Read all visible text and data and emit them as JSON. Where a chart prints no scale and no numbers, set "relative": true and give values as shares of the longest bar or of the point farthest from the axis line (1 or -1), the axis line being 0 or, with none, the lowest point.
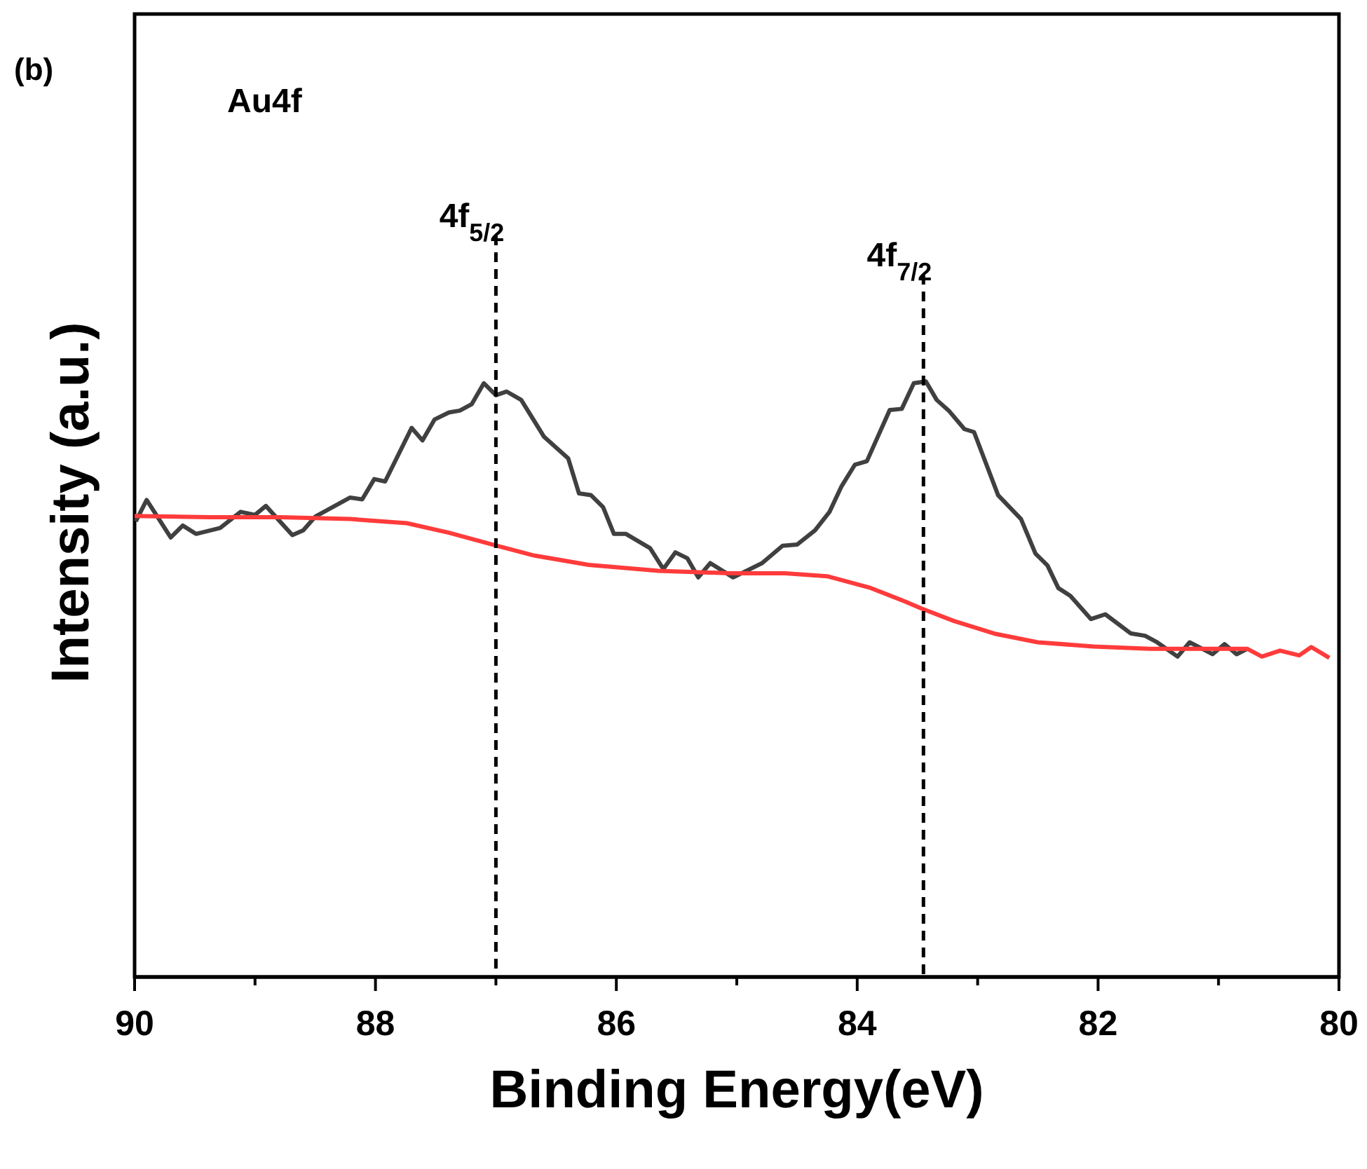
{
  "chart_data": {
    "type": "line",
    "relative": true,
    "xlabel": "Binding Energy(eV)",
    "ylabel": "Intensity (a.u.)",
    "tick_labels": "x",
    "annotations": [
      "(b)",
      "Au4f"
    ],
    "xlim": [
      90,
      80
    ],
    "xticks": [
      90,
      {
        "value": 89,
        "label": null
      },
      88,
      {
        "value": 87,
        "label": null
      },
      86,
      {
        "value": 85,
        "label": null
      },
      84,
      {
        "value": 83,
        "label": null
      },
      82,
      {
        "value": 81,
        "label": null
      },
      80
    ],
    "ref_lines": [
      {
        "axis": "x",
        "value": 87.0,
        "label": "4f$_{5/2}$",
        "color": "#000000",
        "line_style": "dashed"
      },
      {
        "axis": "x",
        "value": 83.45,
        "label": "4f$_{7/2}$",
        "color": "#000000",
        "line_style": "dashed"
      }
    ],
    "series": [
      {
        "color": "#404040",
        "x": [
          89.99,
          89.9,
          89.7,
          89.6,
          89.49,
          89.29,
          89.12,
          89.0,
          88.91,
          88.69,
          88.6,
          88.5,
          88.21,
          88.11,
          88.01,
          87.92,
          87.7,
          87.61,
          87.51,
          87.39,
          87.3,
          87.2,
          87.1,
          87.0,
          86.91,
          86.79,
          86.6,
          86.4,
          86.31,
          86.21,
          86.11,
          86.02,
          85.92,
          85.72,
          85.61,
          85.51,
          85.41,
          85.32,
          85.22,
          85.03,
          84.79,
          84.62,
          84.5,
          84.35,
          84.23,
          84.13,
          84.02,
          83.92,
          83.73,
          83.63,
          83.53,
          83.43,
          83.34,
          83.24,
          83.11,
          83.03,
          82.83,
          82.64,
          82.52,
          82.42,
          82.33,
          82.23,
          82.06,
          81.94,
          81.73,
          81.61,
          81.51,
          81.34,
          81.24,
          81.05,
          80.95,
          80.85,
          80.76
        ],
        "values": [
          0.765,
          0.801,
          0.738,
          0.758,
          0.744,
          0.754,
          0.781,
          0.776,
          0.791,
          0.742,
          0.75,
          0.773,
          0.805,
          0.802,
          0.836,
          0.832,
          0.922,
          0.901,
          0.936,
          0.948,
          0.951,
          0.962,
          0.997,
          0.977,
          0.983,
          0.969,
          0.907,
          0.871,
          0.812,
          0.809,
          0.789,
          0.744,
          0.744,
          0.72,
          0.685,
          0.713,
          0.703,
          0.671,
          0.695,
          0.671,
          0.695,
          0.724,
          0.726,
          0.75,
          0.781,
          0.824,
          0.86,
          0.866,
          0.952,
          0.954,
          0.997,
          1,
          0.969,
          0.951,
          0.92,
          0.915,
          0.809,
          0.769,
          0.711,
          0.691,
          0.653,
          0.64,
          0.601,
          0.609,
          0.577,
          0.573,
          0.562,
          0.538,
          0.562,
          0.542,
          0.559,
          0.542,
          0.551
        ]
      },
      {
        "color": "#ff3b3b",
        "x": [
          90.0,
          89.37,
          88.79,
          88.21,
          87.74,
          87.39,
          87.01,
          86.69,
          86.23,
          85.65,
          85.06,
          84.6,
          84.25,
          83.9,
          83.61,
          83.47,
          83.2,
          82.85,
          82.5,
          82.04,
          81.57,
          81.11,
          80.76,
          80.64,
          80.49,
          80.33,
          80.23,
          80.08
        ],
        "values": [
          0.774,
          0.772,
          0.772,
          0.769,
          0.762,
          0.746,
          0.725,
          0.708,
          0.692,
          0.682,
          0.678,
          0.678,
          0.673,
          0.654,
          0.631,
          0.619,
          0.598,
          0.576,
          0.562,
          0.555,
          0.551,
          0.551,
          0.551,
          0.538,
          0.548,
          0.54,
          0.554,
          0.536
        ]
      }
    ]
  }
}
